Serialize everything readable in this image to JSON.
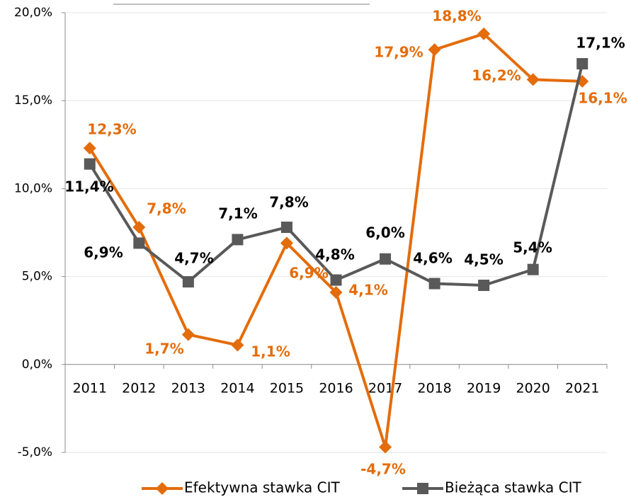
{
  "chart_data": {
    "type": "line",
    "categories": [
      "2011",
      "2012",
      "2013",
      "2014",
      "2015",
      "2016",
      "2017",
      "2018",
      "2019",
      "2020",
      "2021"
    ],
    "series": [
      {
        "name": "Efektywna stawka CIT",
        "color": "#e46c0a",
        "marker": "diamond",
        "values": [
          12.3,
          7.8,
          1.7,
          1.1,
          6.9,
          4.1,
          -4.7,
          17.9,
          18.8,
          16.2,
          16.1
        ],
        "value_labels": [
          "12,3%",
          "7,8%",
          "1,7%",
          "1,1%",
          "6,9%",
          "4,1%",
          "-4,7%",
          "17,9%",
          "18,8%",
          "16,2%",
          "16,1%"
        ]
      },
      {
        "name": "Bieżąca stawka CIT",
        "color": "#595959",
        "marker": "square",
        "values": [
          11.4,
          6.9,
          4.7,
          7.1,
          7.8,
          4.8,
          6.0,
          4.6,
          4.5,
          5.4,
          17.1
        ],
        "value_labels": [
          "11,4%",
          "6,9%",
          "4,7%",
          "7,1%",
          "7,8%",
          "4,8%",
          "6,0%",
          "4,6%",
          "4,5%",
          "5,4%",
          "17,1%"
        ]
      }
    ],
    "ylim": [
      -5,
      20
    ],
    "yticks": [
      {
        "value": -5,
        "label": "-5,0%"
      },
      {
        "value": 0,
        "label": "0,0%"
      },
      {
        "value": 5,
        "label": "5,0%"
      },
      {
        "value": 10,
        "label": "10,0%"
      },
      {
        "value": 15,
        "label": "15,0%"
      },
      {
        "value": 20,
        "label": "20,0%"
      }
    ],
    "grid": true,
    "legend": "bottom"
  }
}
